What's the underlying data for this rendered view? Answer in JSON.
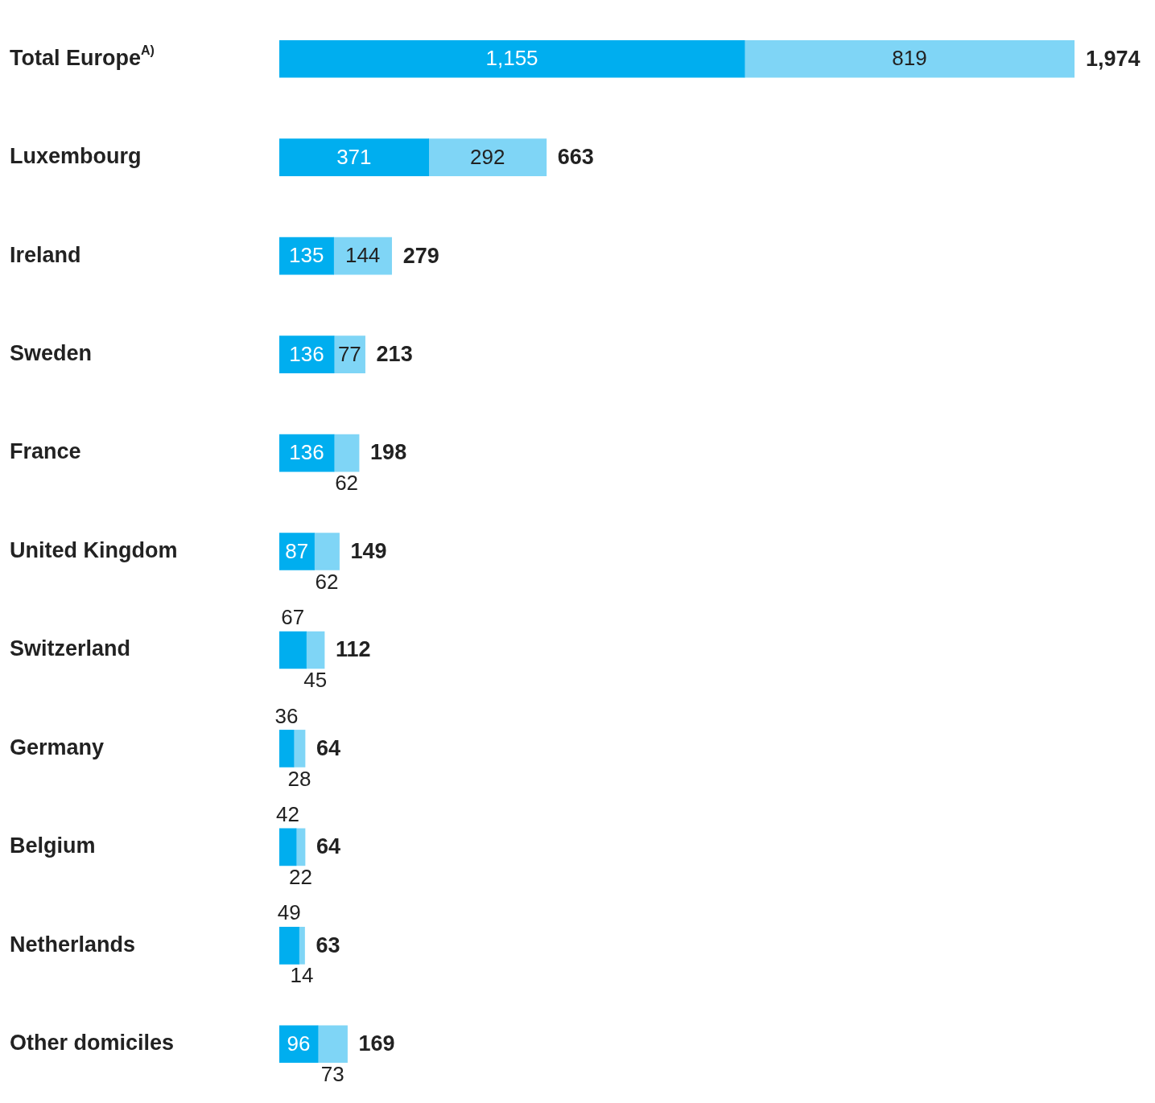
{
  "chart_data": {
    "type": "bar",
    "orientation": "horizontal",
    "stacked": true,
    "categories": [
      "Total Europe$^{A)}$",
      "Luxembourg",
      "Ireland",
      "Sweden",
      "France",
      "United Kingdom",
      "Switzerland",
      "Germany",
      "Belgium",
      "Netherlands",
      "Other domiciles"
    ],
    "series": [
      {
        "color": "#00aeef",
        "values": [
          1155,
          371,
          135,
          136,
          136,
          87,
          67,
          36,
          42,
          49,
          96
        ],
        "value_labels": [
          "1,155",
          "371",
          "135",
          "136",
          "136",
          "87",
          "67",
          "36",
          "42",
          "49",
          "96"
        ]
      },
      {
        "color": "#7fd5f6",
        "values": [
          819,
          292,
          144,
          77,
          62,
          62,
          45,
          28,
          22,
          14,
          73
        ],
        "value_labels": [
          "819",
          "292",
          "144",
          "77",
          "62",
          "62",
          "45",
          "28",
          "22",
          "14",
          "73"
        ]
      }
    ],
    "totals": [
      "1,974",
      "663",
      "279",
      "213",
      "198",
      "149",
      "112",
      "64",
      "64",
      "63",
      "169"
    ],
    "tick_labels": "y",
    "legend": false
  }
}
